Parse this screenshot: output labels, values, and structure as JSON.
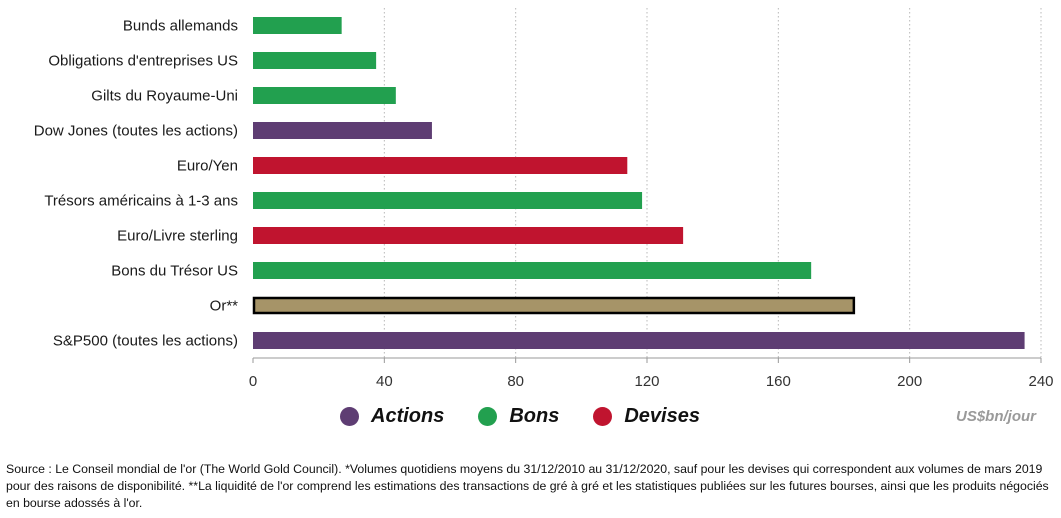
{
  "chart_data": {
    "type": "bar",
    "orientation": "horizontal",
    "categories": [
      "Bunds allemands",
      "Obligations d'entreprises US",
      "Gilts du Royaume-Uni",
      "Dow Jones (toutes les actions)",
      "Euro/Yen",
      "Trésors américains à 1-3 ans",
      "Euro/Livre sterling",
      "Bons du Trésor US",
      "Or**",
      "S&P500 (toutes les actions)"
    ],
    "values": [
      27,
      37.5,
      43.5,
      54.5,
      114,
      118.5,
      131,
      170,
      183,
      235
    ],
    "groups": [
      "Bons",
      "Bons",
      "Bons",
      "Actions",
      "Devises",
      "Bons",
      "Devises",
      "Bons",
      "Or",
      "Actions"
    ],
    "xlim": [
      0,
      240
    ],
    "xticks": [
      0,
      40,
      80,
      120,
      160,
      200,
      240
    ],
    "xlabel": "US$bn/jour",
    "grid": "vertical dotted",
    "legend": [
      {
        "name": "Actions",
        "color": "#5e3d73"
      },
      {
        "name": "Bons",
        "color": "#22a04f"
      },
      {
        "name": "Devises",
        "color": "#c0142f"
      }
    ],
    "colors": {
      "Actions": "#5e3d73",
      "Bons": "#22a04f",
      "Devises": "#c0142f",
      "Or": "#a69468",
      "or_border": "#000000"
    }
  },
  "legend": {
    "actions": "Actions",
    "bons": "Bons",
    "devises": "Devises"
  },
  "unit_label": "US$bn/jour",
  "source_note": "Source : Le Conseil mondial de l'or (The World Gold Council). *Volumes quotidiens moyens du 31/12/2010 au 31/12/2020, sauf pour les devises qui correspondent aux volumes de mars 2019 pour des raisons de disponibilité. **La liquidité de l'or comprend les estimations des transactions de gré à gré et les statistiques publiées sur les futures bourses, ainsi que les produits négociés en bourse adossés à l'or."
}
